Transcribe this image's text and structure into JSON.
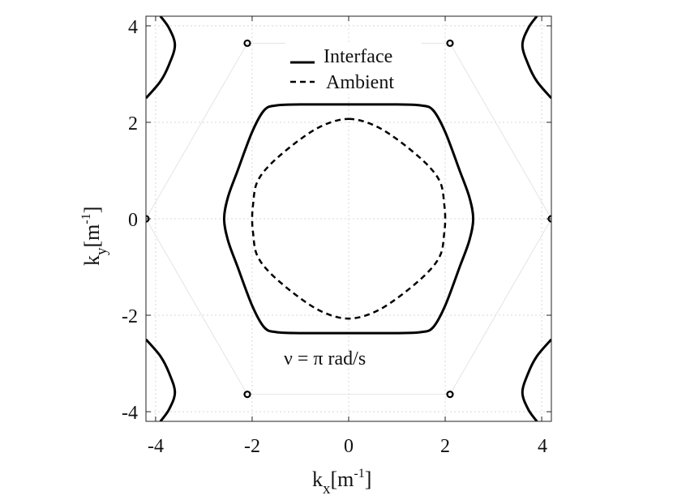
{
  "chart_data": {
    "type": "line",
    "xlabel": {
      "base": "k",
      "sub": "x",
      "unit_open": "[m",
      "sup": "-1",
      "unit_close": "]"
    },
    "ylabel": {
      "base": "k",
      "sub": "y",
      "unit_open": "[m",
      "sup": "-1",
      "unit_close": "]"
    },
    "xlim": [
      -4.2,
      4.2
    ],
    "ylim": [
      -4.2,
      4.2
    ],
    "x_ticks": [
      -4,
      -2,
      0,
      2,
      4
    ],
    "y_ticks": [
      -4,
      -2,
      0,
      2,
      4
    ],
    "x_tick_labels": [
      "-4",
      "-2",
      "0",
      "2",
      "4"
    ],
    "y_tick_labels": [
      "-4",
      "-2",
      "0",
      "2",
      "4"
    ],
    "grid": true,
    "legend_position": "top-center",
    "annotation": "ν = π rad/s",
    "series": [
      {
        "name": "Interface",
        "style": "solid",
        "color": "#000000",
        "x": [
          0.0,
          1.0,
          1.5,
          1.75,
          2.0,
          2.3,
          2.5,
          2.58,
          2.5,
          2.3,
          2.0,
          1.75,
          1.5,
          1.0,
          0.0,
          -1.0,
          -1.5,
          -1.75,
          -2.0,
          -2.3,
          -2.5,
          -2.58,
          -2.5,
          -2.3,
          -2.0,
          -1.75,
          -1.5,
          -1.0,
          0.0
        ],
        "y": [
          2.37,
          2.37,
          2.35,
          2.25,
          1.8,
          1.0,
          0.45,
          0.0,
          -0.45,
          -1.0,
          -1.8,
          -2.25,
          -2.35,
          -2.37,
          -2.37,
          -2.37,
          -2.35,
          -2.25,
          -1.8,
          -1.0,
          -0.45,
          0.0,
          0.45,
          1.0,
          1.8,
          2.25,
          2.35,
          2.37,
          2.37
        ]
      },
      {
        "name": "Ambient",
        "style": "dashed",
        "color": "#000000",
        "x": [
          0.0,
          0.5,
          1.0,
          1.6,
          1.9,
          1.98,
          2.0,
          1.98,
          1.9,
          1.6,
          1.0,
          0.5,
          0.0,
          -0.5,
          -1.0,
          -1.6,
          -1.9,
          -1.98,
          -2.0,
          -1.98,
          -1.9,
          -1.6,
          -1.0,
          -0.5,
          0.0
        ],
        "y": [
          2.07,
          1.95,
          1.65,
          1.15,
          0.75,
          0.3,
          0.0,
          -0.3,
          -0.75,
          -1.15,
          -1.65,
          -1.95,
          -2.07,
          -1.95,
          -1.65,
          -1.15,
          -0.75,
          -0.3,
          0.0,
          0.3,
          0.75,
          1.15,
          1.65,
          1.95,
          2.07
        ]
      }
    ],
    "edge_curves": [
      {
        "x": [
          -3.9,
          -3.72,
          -3.6,
          -3.72,
          -3.9,
          -4.2
        ],
        "y": [
          4.2,
          3.95,
          3.6,
          3.2,
          2.85,
          2.5
        ]
      },
      {
        "x": [
          3.9,
          3.72,
          3.6,
          3.72,
          3.9,
          4.2
        ],
        "y": [
          4.2,
          3.95,
          3.6,
          3.2,
          2.85,
          2.5
        ]
      },
      {
        "x": [
          -3.9,
          -3.72,
          -3.6,
          -3.72,
          -3.9,
          -4.2
        ],
        "y": [
          -4.2,
          -3.95,
          -3.6,
          -3.2,
          -2.85,
          -2.5
        ]
      },
      {
        "x": [
          3.9,
          3.72,
          3.6,
          3.72,
          3.9,
          4.2
        ],
        "y": [
          -4.2,
          -3.95,
          -3.6,
          -3.2,
          -2.85,
          -2.5
        ]
      }
    ],
    "small_loops": [
      {
        "x": -2.1,
        "y": 3.64
      },
      {
        "x": 2.1,
        "y": 3.64
      },
      {
        "x": -2.1,
        "y": -3.64
      },
      {
        "x": 2.1,
        "y": -3.64
      },
      {
        "x": -4.2,
        "y": 0.0
      },
      {
        "x": 4.2,
        "y": 0.0
      }
    ],
    "brillouin_zone": {
      "x": [
        4.2,
        2.1,
        -2.1,
        -4.2,
        -2.1,
        2.1,
        4.2
      ],
      "y": [
        0.0,
        3.64,
        3.64,
        0.0,
        -3.64,
        -3.64,
        0.0
      ]
    }
  }
}
